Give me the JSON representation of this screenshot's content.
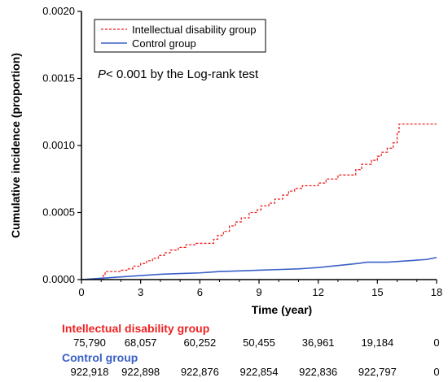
{
  "chart_data": {
    "type": "line",
    "xlabel": "Time (year)",
    "ylabel": "Cumulative incidence (proportion)",
    "xlim": [
      0,
      18
    ],
    "ylim": [
      0,
      0.002
    ],
    "x_ticks": [
      "0",
      "3",
      "6",
      "9",
      "12",
      "15",
      "18"
    ],
    "x_tick_values": [
      0,
      3,
      6,
      9,
      12,
      15,
      18
    ],
    "y_ticks": [
      "0.0000",
      "0.0005",
      "0.0010",
      "0.0015",
      "0.0020"
    ],
    "y_tick_values": [
      0,
      0.0005,
      0.001,
      0.0015,
      0.002
    ],
    "grid": false,
    "legend_position": "top-left",
    "annotation": {
      "italic": "P",
      "rest": "< 0.001 by the Log-rank test"
    },
    "series": [
      {
        "name": "Intellectual disability group",
        "color": "#ee2222",
        "style": "dashed-step",
        "x": [
          0,
          1.1,
          1.2,
          2.0,
          2.3,
          2.6,
          3.0,
          3.3,
          3.6,
          3.9,
          4.2,
          4.5,
          4.9,
          5.3,
          5.8,
          6.3,
          6.7,
          6.9,
          7.2,
          7.5,
          7.8,
          8.1,
          8.5,
          8.9,
          9.1,
          9.5,
          9.8,
          10.2,
          10.5,
          10.8,
          11.2,
          12.0,
          12.4,
          13.0,
          13.9,
          14.2,
          14.7,
          15.0,
          15.2,
          15.5,
          15.8,
          16.0,
          16.1,
          18.0
        ],
        "y": [
          0,
          3e-05,
          6e-05,
          7e-05,
          8e-05,
          0.0001,
          0.00012,
          0.00014,
          0.00016,
          0.00018,
          0.0002,
          0.00022,
          0.00024,
          0.00026,
          0.00027,
          0.00027,
          0.0003,
          0.00033,
          0.00036,
          0.0004,
          0.00043,
          0.00046,
          0.0005,
          0.00052,
          0.00055,
          0.00057,
          0.0006,
          0.00063,
          0.00066,
          0.00068,
          0.0007,
          0.00072,
          0.00075,
          0.00078,
          0.00082,
          0.00086,
          0.00089,
          0.00092,
          0.00095,
          0.00098,
          0.00102,
          0.0011,
          0.00116,
          0.00116
        ]
      },
      {
        "name": "Control group",
        "color": "#3a60c8",
        "style": "solid",
        "x": [
          0,
          1,
          2,
          3,
          4,
          5,
          6,
          6.5,
          7,
          8,
          9,
          10,
          11,
          12,
          13,
          14,
          14.5,
          15.5,
          16.5,
          17.5,
          18
        ],
        "y": [
          0,
          1e-05,
          2e-05,
          3e-05,
          4e-05,
          4.5e-05,
          5e-05,
          5.5e-05,
          6e-05,
          6.5e-05,
          7e-05,
          7.5e-05,
          8e-05,
          9e-05,
          0.000105,
          0.00012,
          0.00013,
          0.00013,
          0.00014,
          0.00015,
          0.000165
        ]
      }
    ]
  },
  "risk_table": {
    "groups": [
      {
        "label": "Intellectual disability group",
        "color": "#ee2222",
        "values": [
          "75,790",
          "68,057",
          "60,252",
          "50,455",
          "36,961",
          "19,184",
          "0"
        ]
      },
      {
        "label": "Control group",
        "color": "#3a60c8",
        "values": [
          "922,918",
          "922,898",
          "922,876",
          "922,854",
          "922,836",
          "922,797",
          "0"
        ]
      }
    ]
  }
}
